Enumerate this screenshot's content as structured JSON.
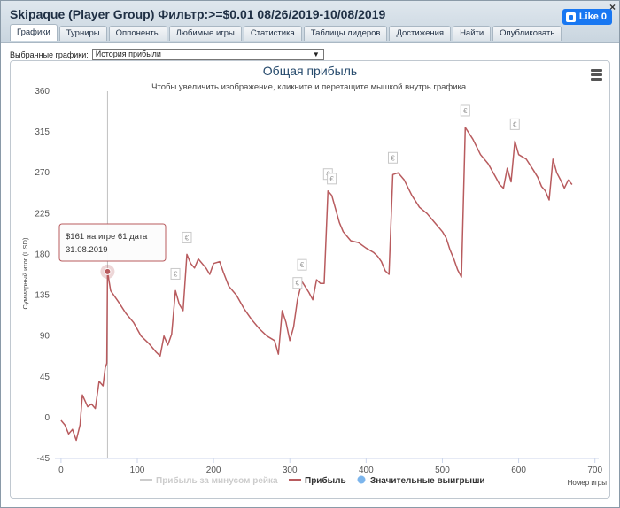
{
  "window": {
    "title": "Skipaque (Player Group) Фильтр:>=$0.01 08/26/2019-10/08/2019",
    "close_label": "×",
    "fb_like_label": "Like 0"
  },
  "tabs": [
    {
      "label": "Графики",
      "active": true
    },
    {
      "label": "Турниры",
      "active": false
    },
    {
      "label": "Оппоненты",
      "active": false
    },
    {
      "label": "Любимые игры",
      "active": false
    },
    {
      "label": "Статистика",
      "active": false
    },
    {
      "label": "Таблицы лидеров",
      "active": false
    },
    {
      "label": "Достижения",
      "active": false
    },
    {
      "label": "Найти",
      "active": false
    },
    {
      "label": "Опубликовать",
      "active": false
    }
  ],
  "chart_selector": {
    "label": "Выбранные графики:",
    "value": "История прибыли",
    "arrow": "▼"
  },
  "colors": {
    "profit_line": "#b85b5e",
    "rake_line": "#cccccc",
    "big_win": "#7cb5ec",
    "title": "#274b6d",
    "crosshair": "#c0c0c0"
  },
  "tooltip": {
    "line1": "$161 на игре 61 дата",
    "line2": "31.08.2019"
  },
  "chart_data": {
    "type": "line",
    "title": "Общая прибыль",
    "subtitle": "Чтобы увеличить изображение, кликните и перетащите мышкой внутрь графика.",
    "xlabel": "Номер игры",
    "ylabel": "Суммарный итог (USD)",
    "xlim": [
      -8,
      705
    ],
    "ylim": [
      -45,
      360
    ],
    "x_ticks": [
      0,
      100,
      200,
      300,
      400,
      500,
      600,
      700
    ],
    "y_ticks": [
      -45,
      0,
      45,
      90,
      135,
      180,
      225,
      270,
      315,
      360
    ],
    "grid": false,
    "legend_position": "bottom",
    "legend": [
      {
        "name": "Прибыль за минусом рейка",
        "kind": "line",
        "enabled": false
      },
      {
        "name": "Прибыль",
        "kind": "line",
        "enabled": true
      },
      {
        "name": "Значительные выигрыши",
        "kind": "marker",
        "enabled": true
      }
    ],
    "series": [
      {
        "name": "Прибыль",
        "points": [
          [
            0,
            -3
          ],
          [
            5,
            -8
          ],
          [
            10,
            -18
          ],
          [
            15,
            -13
          ],
          [
            20,
            -25
          ],
          [
            25,
            -8
          ],
          [
            28,
            25
          ],
          [
            35,
            12
          ],
          [
            40,
            15
          ],
          [
            45,
            10
          ],
          [
            50,
            40
          ],
          [
            55,
            35
          ],
          [
            58,
            55
          ],
          [
            60,
            60
          ],
          [
            61,
            161
          ],
          [
            65,
            140
          ],
          [
            75,
            128
          ],
          [
            85,
            115
          ],
          [
            95,
            105
          ],
          [
            105,
            90
          ],
          [
            115,
            82
          ],
          [
            125,
            72
          ],
          [
            130,
            68
          ],
          [
            135,
            90
          ],
          [
            140,
            80
          ],
          [
            145,
            92
          ],
          [
            150,
            140
          ],
          [
            155,
            125
          ],
          [
            160,
            118
          ],
          [
            165,
            180
          ],
          [
            170,
            170
          ],
          [
            175,
            165
          ],
          [
            180,
            175
          ],
          [
            190,
            165
          ],
          [
            195,
            158
          ],
          [
            200,
            170
          ],
          [
            208,
            172
          ],
          [
            213,
            160
          ],
          [
            220,
            145
          ],
          [
            230,
            135
          ],
          [
            240,
            120
          ],
          [
            250,
            108
          ],
          [
            260,
            98
          ],
          [
            270,
            90
          ],
          [
            280,
            85
          ],
          [
            285,
            70
          ],
          [
            290,
            118
          ],
          [
            295,
            105
          ],
          [
            300,
            85
          ],
          [
            305,
            100
          ],
          [
            310,
            130
          ],
          [
            316,
            150
          ],
          [
            325,
            138
          ],
          [
            330,
            130
          ],
          [
            335,
            152
          ],
          [
            340,
            148
          ],
          [
            345,
            148
          ],
          [
            350,
            250
          ],
          [
            355,
            245
          ],
          [
            360,
            230
          ],
          [
            365,
            215
          ],
          [
            370,
            205
          ],
          [
            375,
            200
          ],
          [
            380,
            195
          ],
          [
            390,
            193
          ],
          [
            400,
            187
          ],
          [
            410,
            182
          ],
          [
            415,
            178
          ],
          [
            420,
            172
          ],
          [
            425,
            162
          ],
          [
            430,
            158
          ],
          [
            435,
            268
          ],
          [
            442,
            270
          ],
          [
            450,
            262
          ],
          [
            460,
            245
          ],
          [
            470,
            232
          ],
          [
            480,
            225
          ],
          [
            490,
            215
          ],
          [
            500,
            205
          ],
          [
            505,
            198
          ],
          [
            510,
            185
          ],
          [
            515,
            175
          ],
          [
            520,
            163
          ],
          [
            525,
            155
          ],
          [
            530,
            320
          ],
          [
            540,
            307
          ],
          [
            550,
            290
          ],
          [
            560,
            280
          ],
          [
            570,
            265
          ],
          [
            575,
            257
          ],
          [
            580,
            253
          ],
          [
            585,
            275
          ],
          [
            590,
            260
          ],
          [
            595,
            305
          ],
          [
            600,
            290
          ],
          [
            610,
            285
          ],
          [
            620,
            272
          ],
          [
            625,
            265
          ],
          [
            630,
            255
          ],
          [
            635,
            250
          ],
          [
            640,
            240
          ],
          [
            645,
            285
          ],
          [
            650,
            270
          ],
          [
            655,
            262
          ],
          [
            660,
            253
          ],
          [
            665,
            262
          ],
          [
            670,
            257
          ]
        ]
      }
    ],
    "big_wins": [
      [
        150,
        140
      ],
      [
        165,
        180
      ],
      [
        310,
        130
      ],
      [
        316,
        150
      ],
      [
        350,
        250
      ],
      [
        355,
        245
      ],
      [
        435,
        268
      ],
      [
        530,
        320
      ],
      [
        595,
        305
      ]
    ],
    "highlight": {
      "x": 61,
      "y": 161
    }
  }
}
